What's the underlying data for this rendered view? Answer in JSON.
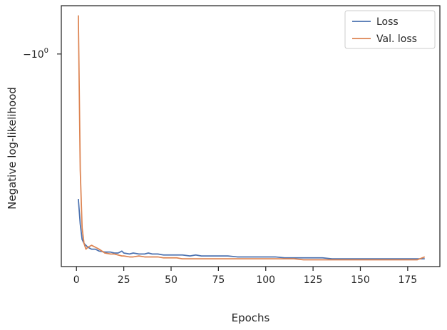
{
  "chart_data": {
    "type": "line",
    "xlabel": "Epochs",
    "ylabel": "Negative log-likelihood",
    "xlim": [
      -8,
      192
    ],
    "yscale": "symlog",
    "ylim": [
      -2.1,
      -0.75
    ],
    "xticks": [
      0,
      25,
      50,
      75,
      100,
      125,
      150,
      175
    ],
    "ytick_labels": [
      {
        "value": -1.0,
        "base": "−10",
        "exponent": "0"
      }
    ],
    "grid": false,
    "legend_position": "top-right",
    "series": [
      {
        "name": "Loss",
        "color": "#4c72b0",
        "x": [
          1,
          2,
          3,
          4,
          5,
          6,
          8,
          10,
          12,
          15,
          18,
          20,
          22,
          24,
          25,
          28,
          30,
          33,
          36,
          38,
          40,
          43,
          46,
          50,
          53,
          56,
          60,
          63,
          66,
          70,
          75,
          80,
          85,
          90,
          95,
          100,
          105,
          110,
          115,
          120,
          125,
          130,
          135,
          140,
          145,
          150,
          155,
          160,
          165,
          170,
          175,
          180,
          184
        ],
        "y": [
          -1.75,
          -1.88,
          -1.96,
          -1.98,
          -1.99,
          -2.0,
          -2.01,
          -2.01,
          -2.02,
          -2.025,
          -2.025,
          -2.03,
          -2.03,
          -2.02,
          -2.03,
          -2.035,
          -2.03,
          -2.035,
          -2.035,
          -2.03,
          -2.035,
          -2.035,
          -2.04,
          -2.04,
          -2.04,
          -2.04,
          -2.045,
          -2.04,
          -2.045,
          -2.045,
          -2.045,
          -2.045,
          -2.05,
          -2.05,
          -2.05,
          -2.05,
          -2.05,
          -2.055,
          -2.055,
          -2.055,
          -2.055,
          -2.055,
          -2.06,
          -2.06,
          -2.06,
          -2.06,
          -2.06,
          -2.06,
          -2.06,
          -2.06,
          -2.06,
          -2.06,
          -2.06
        ]
      },
      {
        "name": "Val. loss",
        "color": "#dd8452",
        "x": [
          1,
          2,
          3,
          4,
          5,
          6,
          8,
          10,
          12,
          15,
          18,
          20,
          22,
          24,
          25,
          28,
          30,
          33,
          36,
          38,
          40,
          43,
          46,
          50,
          53,
          56,
          60,
          63,
          66,
          70,
          75,
          80,
          85,
          90,
          95,
          100,
          105,
          110,
          115,
          120,
          125,
          130,
          135,
          140,
          145,
          150,
          155,
          160,
          165,
          170,
          175,
          180,
          184
        ],
        "y": [
          -0.8,
          -1.6,
          -1.9,
          -1.98,
          -2.01,
          -2.0,
          -1.99,
          -2.0,
          -2.01,
          -2.03,
          -2.035,
          -2.035,
          -2.04,
          -2.045,
          -2.045,
          -2.05,
          -2.05,
          -2.045,
          -2.05,
          -2.05,
          -2.05,
          -2.05,
          -2.055,
          -2.055,
          -2.055,
          -2.06,
          -2.06,
          -2.06,
          -2.06,
          -2.06,
          -2.06,
          -2.06,
          -2.06,
          -2.06,
          -2.06,
          -2.06,
          -2.06,
          -2.06,
          -2.06,
          -2.065,
          -2.065,
          -2.065,
          -2.065,
          -2.065,
          -2.065,
          -2.065,
          -2.065,
          -2.065,
          -2.065,
          -2.065,
          -2.065,
          -2.065,
          -2.05
        ]
      }
    ]
  }
}
